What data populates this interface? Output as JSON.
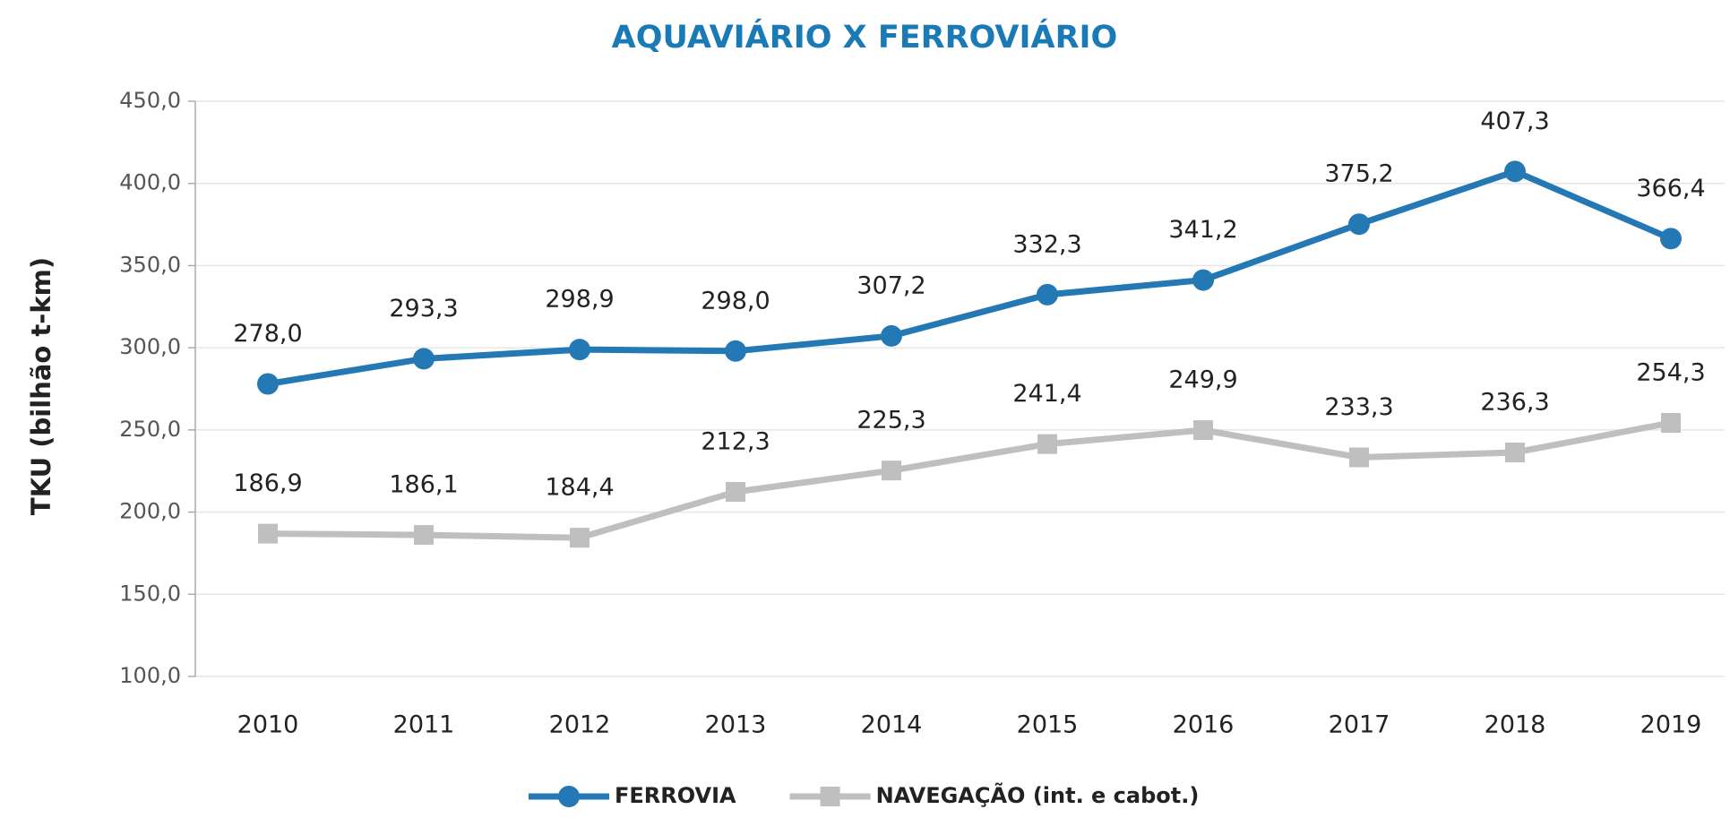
{
  "chart_data": {
    "type": "line",
    "title": "AQUAVIÁRIO X FERROVIÁRIO",
    "y_label": "TKU (bilhão t-km)",
    "categories": [
      "2010",
      "2011",
      "2012",
      "2013",
      "2014",
      "2015",
      "2016",
      "2017",
      "2018",
      "2019"
    ],
    "series": [
      {
        "name": "FERROVIA",
        "color": "#2479b5",
        "marker": "circle",
        "values": [
          278.0,
          293.3,
          298.9,
          298.0,
          307.2,
          332.3,
          341.2,
          375.2,
          407.3,
          366.4
        ],
        "value_labels": [
          "278,0",
          "293,3",
          "298,9",
          "298,0",
          "307,2",
          "332,3",
          "341,2",
          "375,2",
          "407,3",
          "366,4"
        ]
      },
      {
        "name": "NAVEGAÇÃO (int. e cabot.)",
        "color": "#bfbfbf",
        "marker": "square",
        "values": [
          186.9,
          186.1,
          184.4,
          212.3,
          225.3,
          241.4,
          249.9,
          233.3,
          236.3,
          254.3
        ],
        "value_labels": [
          "186,9",
          "186,1",
          "184,4",
          "212,3",
          "225,3",
          "241,4",
          "249,9",
          "233,3",
          "236,3",
          "254,3"
        ]
      }
    ],
    "ylim": [
      100,
      450
    ],
    "yticks": [
      {
        "value": 100,
        "label": "100,0"
      },
      {
        "value": 150,
        "label": "150,0"
      },
      {
        "value": 200,
        "label": "200,0"
      },
      {
        "value": 250,
        "label": "250,0"
      },
      {
        "value": 300,
        "label": "300,0"
      },
      {
        "value": 350,
        "label": "350,0"
      },
      {
        "value": 400,
        "label": "400,0"
      },
      {
        "value": 450,
        "label": "450,0"
      }
    ],
    "grid": true,
    "legend": "bottom"
  }
}
